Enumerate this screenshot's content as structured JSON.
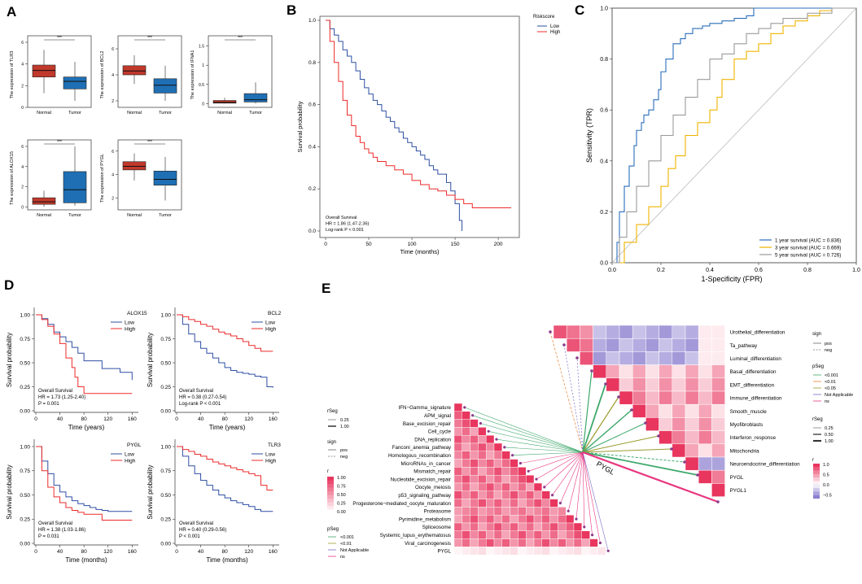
{
  "colors": {
    "red": "#ee2b2b",
    "blue": "#2e4fa3",
    "box_red": "#c0392b",
    "box_blue": "#1f6fb4",
    "roc_blue": "#2a6ebb",
    "roc_yellow": "#f0b400",
    "roc_gray": "#9a9a9a",
    "heat_red": "#e8365f",
    "heat_purple": "#8c7fd0"
  },
  "panels": {
    "A": "A",
    "B": "B",
    "C": "C",
    "D": "D",
    "E": "E"
  },
  "chart_data": [
    {
      "id": "A",
      "type": "box",
      "groups": [
        "Normal",
        "Tumor"
      ],
      "signif": "***",
      "plots": [
        {
          "ylabel": "The expression of TLR3",
          "ticks": [
            0,
            2,
            4,
            6
          ],
          "ylim": [
            0,
            6
          ],
          "normal": [
            1.3,
            2.8,
            3.4,
            3.9,
            5.3
          ],
          "tumor": [
            0.6,
            1.7,
            2.4,
            2.8,
            4.2
          ]
        },
        {
          "ylabel": "The expression of BCL2",
          "ticks": [
            2,
            4,
            6
          ],
          "ylim": [
            1.5,
            6.5
          ],
          "normal": [
            3.3,
            4.0,
            4.3,
            4.7,
            5.5
          ],
          "tumor": [
            2.0,
            2.6,
            3.2,
            3.7,
            4.7
          ]
        },
        {
          "ylabel": "The expression of IFNA1",
          "ticks": [
            0.0,
            0.5,
            1.0,
            1.5
          ],
          "ylim": [
            -0.1,
            1.6
          ],
          "normal": [
            0.0,
            0.01,
            0.03,
            0.08,
            0.15
          ],
          "tumor": [
            0.0,
            0.04,
            0.1,
            0.26,
            0.55
          ]
        },
        {
          "ylabel": "The expression of ALOX15",
          "ticks": [
            0,
            2,
            4,
            6
          ],
          "ylim": [
            -0.3,
            6
          ],
          "normal": [
            0.0,
            0.25,
            0.5,
            0.9,
            1.6
          ],
          "tumor": [
            0.1,
            0.4,
            1.7,
            3.5,
            6.0
          ]
        },
        {
          "ylabel": "The expression of PYGL",
          "ticks": [
            2,
            4,
            6
          ],
          "ylim": [
            1,
            6.4
          ],
          "normal": [
            3.5,
            4.4,
            4.7,
            5.1,
            5.8
          ],
          "tumor": [
            1.8,
            3.1,
            3.6,
            4.3,
            5.5
          ]
        }
      ]
    },
    {
      "id": "B",
      "type": "line",
      "subtype": "kaplan-meier",
      "legend_title": "Riskscore",
      "series": [
        {
          "name": "Low",
          "x": [
            0,
            5,
            10,
            15,
            20,
            25,
            30,
            35,
            40,
            45,
            50,
            55,
            60,
            65,
            70,
            75,
            80,
            85,
            90,
            95,
            100,
            105,
            110,
            115,
            120,
            125,
            130,
            140,
            145,
            150,
            155,
            158
          ],
          "y": [
            1.0,
            0.96,
            0.93,
            0.9,
            0.86,
            0.83,
            0.8,
            0.76,
            0.72,
            0.68,
            0.65,
            0.62,
            0.6,
            0.57,
            0.54,
            0.52,
            0.49,
            0.47,
            0.44,
            0.42,
            0.4,
            0.38,
            0.36,
            0.34,
            0.31,
            0.29,
            0.27,
            0.23,
            0.19,
            0.13,
            0.05,
            0.0
          ]
        },
        {
          "name": "High",
          "x": [
            0,
            5,
            10,
            15,
            20,
            25,
            30,
            35,
            40,
            45,
            50,
            55,
            60,
            70,
            80,
            90,
            100,
            110,
            120,
            130,
            140,
            150,
            160,
            170,
            215
          ],
          "y": [
            1.0,
            0.9,
            0.8,
            0.71,
            0.62,
            0.55,
            0.5,
            0.45,
            0.42,
            0.39,
            0.37,
            0.35,
            0.33,
            0.31,
            0.29,
            0.27,
            0.24,
            0.22,
            0.2,
            0.19,
            0.17,
            0.15,
            0.13,
            0.11,
            0.11
          ]
        }
      ],
      "xlabel": "Time (months)",
      "ylabel": "Survival probability",
      "xlim": [
        0,
        215
      ],
      "ylim": [
        0,
        1
      ],
      "xticks": [
        0,
        50,
        100,
        150,
        200
      ],
      "yticks": [
        0.0,
        0.2,
        0.4,
        0.6,
        0.8,
        1.0
      ],
      "annot": [
        "Overall Survival",
        "HR = 1.86 (1.47-2.36)",
        "Log-rank P < 0.001"
      ]
    },
    {
      "id": "C",
      "type": "line",
      "subtype": "roc",
      "series": [
        {
          "name": "1 year survival (AUC = 0.836)",
          "x": [
            0,
            0.02,
            0.03,
            0.05,
            0.07,
            0.09,
            0.1,
            0.12,
            0.13,
            0.15,
            0.17,
            0.19,
            0.2,
            0.22,
            0.25,
            0.28,
            0.3,
            0.33,
            0.37,
            0.4,
            0.45,
            0.5,
            0.55,
            0.58,
            0.6,
            0.65,
            1.0
          ],
          "y": [
            0,
            0.08,
            0.2,
            0.3,
            0.38,
            0.46,
            0.52,
            0.55,
            0.58,
            0.6,
            0.64,
            0.68,
            0.75,
            0.8,
            0.86,
            0.88,
            0.9,
            0.92,
            0.93,
            0.94,
            0.95,
            0.96,
            0.97,
            1.0,
            1.0,
            1.0,
            1.0
          ]
        },
        {
          "name": "3 year survival (AUC = 0.669)",
          "x": [
            0,
            0.05,
            0.1,
            0.15,
            0.2,
            0.23,
            0.26,
            0.3,
            0.35,
            0.4,
            0.43,
            0.45,
            0.5,
            0.55,
            0.6,
            0.65,
            0.7,
            0.75,
            0.8,
            0.85,
            0.9,
            1.0
          ],
          "y": [
            0,
            0.08,
            0.15,
            0.22,
            0.3,
            0.37,
            0.42,
            0.5,
            0.55,
            0.6,
            0.65,
            0.72,
            0.8,
            0.83,
            0.86,
            0.9,
            0.93,
            0.95,
            0.97,
            0.99,
            1.0,
            1.0
          ]
        },
        {
          "name": "5 year survival (AUC = 0.726)",
          "x": [
            0,
            0.03,
            0.06,
            0.1,
            0.15,
            0.2,
            0.25,
            0.3,
            0.35,
            0.4,
            0.45,
            0.5,
            0.55,
            0.6,
            0.65,
            0.7,
            0.8,
            0.9,
            1.0
          ],
          "y": [
            0,
            0.1,
            0.2,
            0.3,
            0.4,
            0.5,
            0.58,
            0.65,
            0.72,
            0.8,
            0.82,
            0.86,
            0.9,
            0.92,
            0.94,
            0.96,
            0.98,
            1.0,
            1.0
          ]
        }
      ],
      "xlabel": "1-Specificity (FPR)",
      "ylabel": "Sensitivity (TPR)",
      "xlim": [
        0,
        1
      ],
      "ylim": [
        0,
        1
      ],
      "xticks": [
        0.0,
        0.2,
        0.4,
        0.6,
        0.8,
        1.0
      ],
      "yticks": [
        0.0,
        0.2,
        0.4,
        0.6,
        0.8,
        1.0
      ]
    },
    {
      "id": "D",
      "type": "line",
      "subtype": "kaplan-meier",
      "ylabel": "Survival probability",
      "plots": [
        {
          "gene": "ALOX15",
          "xlabel": "Time (years)",
          "xlim": [
            0,
            165
          ],
          "xticks": [
            0,
            40,
            80,
            120,
            160
          ],
          "low": {
            "x": [
              0,
              10,
              20,
              30,
              40,
              50,
              60,
              70,
              80,
              100,
              110,
              140,
              160
            ],
            "y": [
              1.0,
              0.96,
              0.9,
              0.82,
              0.77,
              0.72,
              0.66,
              0.6,
              0.52,
              0.52,
              0.44,
              0.4,
              0.32
            ]
          },
          "high": {
            "x": [
              0,
              10,
              20,
              30,
              40,
              50,
              60,
              65,
              70,
              80,
              90,
              160
            ],
            "y": [
              1.0,
              0.95,
              0.88,
              0.8,
              0.7,
              0.55,
              0.45,
              0.35,
              0.25,
              0.18,
              0.18,
              0.18
            ]
          },
          "annot": [
            "Overall Survival",
            "HR = 1.73 (1.25-2.40)",
            "P = 0.001"
          ]
        },
        {
          "gene": "BCL2",
          "xlabel": "Time (years)",
          "xlim": [
            0,
            165
          ],
          "xticks": [
            0,
            40,
            80,
            120,
            160
          ],
          "low": {
            "x": [
              0,
              10,
              20,
              30,
              40,
              50,
              60,
              70,
              80,
              90,
              100,
              110,
              120,
              130,
              140,
              150,
              160
            ],
            "y": [
              1.0,
              0.9,
              0.8,
              0.72,
              0.65,
              0.6,
              0.55,
              0.5,
              0.45,
              0.42,
              0.4,
              0.39,
              0.38,
              0.36,
              0.35,
              0.25,
              0.24
            ]
          },
          "high": {
            "x": [
              0,
              10,
              20,
              30,
              40,
              50,
              60,
              70,
              80,
              90,
              100,
              110,
              120,
              130,
              140,
              150,
              160
            ],
            "y": [
              1.0,
              0.98,
              0.95,
              0.93,
              0.9,
              0.88,
              0.85,
              0.82,
              0.8,
              0.78,
              0.75,
              0.72,
              0.68,
              0.65,
              0.62,
              0.62,
              0.62
            ]
          },
          "annot": [
            "Overall Survival",
            "HR = 0.38 (0.27-0.54)",
            "Log-rank P < 0.001"
          ]
        },
        {
          "gene": "PYGL",
          "xlabel": "Time (months)",
          "xlim": [
            0,
            165
          ],
          "xticks": [
            0,
            40,
            80,
            120,
            160
          ],
          "low": {
            "x": [
              0,
              10,
              20,
              30,
              40,
              50,
              60,
              70,
              80,
              90,
              100,
              110,
              120,
              160
            ],
            "y": [
              1.0,
              0.85,
              0.72,
              0.6,
              0.53,
              0.48,
              0.44,
              0.41,
              0.39,
              0.37,
              0.35,
              0.34,
              0.33,
              0.33
            ]
          },
          "high": {
            "x": [
              0,
              10,
              20,
              30,
              40,
              50,
              60,
              70,
              80,
              90,
              100,
              110,
              120,
              160
            ],
            "y": [
              1.0,
              0.75,
              0.58,
              0.48,
              0.42,
              0.37,
              0.34,
              0.32,
              0.3,
              0.3,
              0.3,
              0.24,
              0.24,
              0.24
            ]
          },
          "annot": [
            "Overall Survival",
            "HR = 1.38 (1.03-1.86)",
            "P = 0.031"
          ]
        },
        {
          "gene": "TLR3",
          "xlabel": "Time (months)",
          "xlim": [
            0,
            165
          ],
          "xticks": [
            0,
            40,
            80,
            120,
            160
          ],
          "low": {
            "x": [
              0,
              10,
              20,
              30,
              40,
              50,
              60,
              70,
              80,
              90,
              100,
              110,
              120,
              130,
              140,
              150,
              160
            ],
            "y": [
              1.0,
              0.9,
              0.8,
              0.72,
              0.65,
              0.6,
              0.55,
              0.5,
              0.47,
              0.44,
              0.42,
              0.4,
              0.38,
              0.35,
              0.33,
              0.33,
              0.33
            ]
          },
          "high": {
            "x": [
              0,
              10,
              20,
              30,
              40,
              50,
              60,
              70,
              80,
              90,
              100,
              110,
              120,
              130,
              140,
              150,
              160
            ],
            "y": [
              1.0,
              0.97,
              0.95,
              0.92,
              0.9,
              0.87,
              0.84,
              0.82,
              0.8,
              0.78,
              0.76,
              0.74,
              0.72,
              0.7,
              0.6,
              0.55,
              0.55
            ]
          },
          "annot": [
            "Overall Survival",
            "HR = 0.40 (0.29-0.56)",
            "P < 0.001"
          ]
        }
      ],
      "legend": [
        "Low",
        "High"
      ]
    },
    {
      "id": "E",
      "type": "heatmap",
      "center_label": "PYGL",
      "right_rows": [
        "Urothelial_differentiation",
        "Ta_pathway",
        "Luminal_differentiation",
        "Basal_differentiation",
        "EMT_differentiation",
        "Immune_differentiation",
        "Smooth_muscle",
        "Myofibroblasts",
        "Interferon_response",
        "Mitochondria",
        "Neuroendocrine_differentiation",
        "PYGL",
        "PYGL1"
      ],
      "left_rows": [
        "IFN−Gamma_signature",
        "APM_signal",
        "Base_excision_repair",
        "Cell_cycle",
        "DNA_replication",
        "Fanconi_anemia_pathway",
        "Homologous_recombination",
        "MicroRNAs_in_cancer",
        "Mismatch_repair",
        "Nucleotide_excision_repair",
        "Oocyte_meiosis",
        "p53_signaling_pathway",
        "Progesterone−mediated_oocyte_maturation",
        "Proteasome",
        "Pyrimidine_metabolism",
        "Spliceosome",
        "Systemic_lupus_erythematosus",
        "Viral_carcinogenesis",
        "PYGL"
      ],
      "legend_left": {
        "rseg_title": "rSeg",
        "rseg": [
          "0.25",
          "1.00"
        ],
        "sign_title": "sign",
        "sign": [
          "pos",
          "neg"
        ],
        "r_title": "r",
        "r_ticks": [
          "1.00",
          "0.75",
          "0.50",
          "0.25",
          "0.00"
        ],
        "pseg_title": "pSeg",
        "pseg": [
          "<0.001",
          "<0.01",
          "Not Applicable",
          "ns"
        ]
      },
      "legend_right": {
        "sign_title": "sign",
        "sign": [
          "pos",
          "neg"
        ],
        "pseg_title": "pSeg",
        "pseg": [
          "<0.001",
          "<0.01",
          "<0.05",
          "Not Applicable",
          "ns"
        ],
        "rseg_title": "rSeg",
        "rseg": [
          "0.25",
          "0.50",
          "1.00"
        ],
        "r_title": "r",
        "r_ticks": [
          "1.0",
          "0.5",
          "0.0",
          "−0.5"
        ]
      }
    }
  ]
}
